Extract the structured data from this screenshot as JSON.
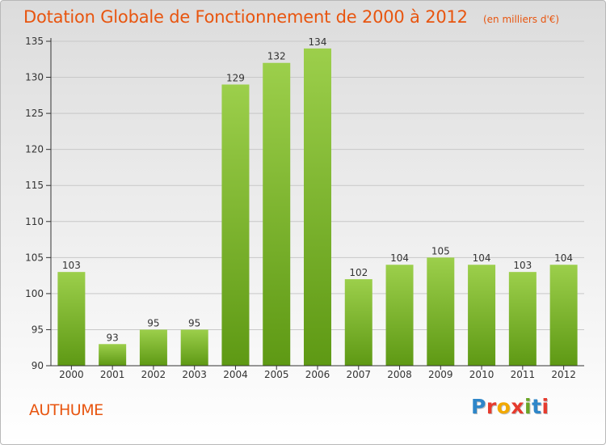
{
  "title": "Dotation Globale de Fonctionnement de 2000 à 2012",
  "unit": "(en milliers d'€)",
  "commune": "AUTHUME",
  "logo": {
    "letters": [
      {
        "ch": "P",
        "color": "#2e86c9"
      },
      {
        "ch": "r",
        "color": "#e63b2e"
      },
      {
        "ch": "o",
        "color": "#f2a900"
      },
      {
        "ch": "x",
        "color": "#e63b2e"
      },
      {
        "ch": "i",
        "color": "#6aa626"
      },
      {
        "ch": "t",
        "color": "#2e86c9"
      },
      {
        "ch": "i",
        "color": "#e63b2e"
      }
    ]
  },
  "colors": {
    "title": "#e8550f",
    "bar_top": "#9ccf4b",
    "bar_bottom": "#5e9914",
    "grid": "#c8c8c8",
    "axis": "#333333"
  },
  "chart_data": {
    "type": "bar",
    "categories": [
      "2000",
      "2001",
      "2002",
      "2003",
      "2004",
      "2005",
      "2006",
      "2007",
      "2008",
      "2009",
      "2010",
      "2011",
      "2012"
    ],
    "values": [
      103,
      93,
      95,
      95,
      129,
      132,
      134,
      102,
      104,
      105,
      104,
      103,
      104
    ],
    "ylim": [
      90,
      135
    ],
    "yticks": [
      90,
      95,
      100,
      105,
      110,
      115,
      120,
      125,
      130,
      135
    ],
    "grid": true,
    "data_labels": true
  }
}
